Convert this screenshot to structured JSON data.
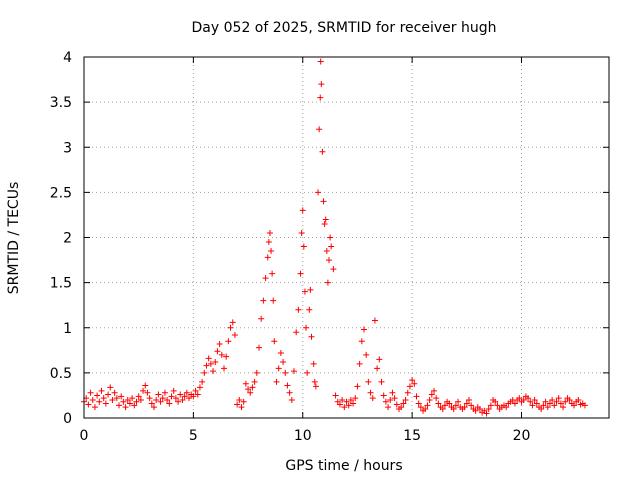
{
  "chart_data": {
    "type": "scatter",
    "title": "Day 052 of 2025, SRMTID for receiver hugh",
    "xlabel": "GPS time / hours",
    "ylabel": "SRMTID / TECUs",
    "xlim": [
      0,
      24
    ],
    "ylim": [
      0,
      4
    ],
    "xticks": [
      0,
      5,
      10,
      15,
      20
    ],
    "xtick_labels": [
      "0",
      "5",
      "10",
      "15",
      "20"
    ],
    "yticks": [
      0,
      0.5,
      1,
      1.5,
      2,
      2.5,
      3,
      3.5,
      4
    ],
    "ytick_labels": [
      "0",
      "0.5",
      "1",
      "1.5",
      "2",
      "2.5",
      "3",
      "3.5",
      "4"
    ],
    "grid": true,
    "marker": "plus",
    "color": "#ff0000",
    "series": [
      {
        "name": "SRMTID",
        "points": [
          [
            0.0,
            0.18
          ],
          [
            0.1,
            0.22
          ],
          [
            0.2,
            0.15
          ],
          [
            0.3,
            0.28
          ],
          [
            0.4,
            0.2
          ],
          [
            0.5,
            0.12
          ],
          [
            0.6,
            0.25
          ],
          [
            0.7,
            0.18
          ],
          [
            0.8,
            0.3
          ],
          [
            0.9,
            0.22
          ],
          [
            1.0,
            0.16
          ],
          [
            1.1,
            0.26
          ],
          [
            1.2,
            0.34
          ],
          [
            1.3,
            0.2
          ],
          [
            1.4,
            0.28
          ],
          [
            1.5,
            0.22
          ],
          [
            1.6,
            0.14
          ],
          [
            1.7,
            0.24
          ],
          [
            1.8,
            0.18
          ],
          [
            1.9,
            0.12
          ],
          [
            2.0,
            0.2
          ],
          [
            2.1,
            0.16
          ],
          [
            2.2,
            0.22
          ],
          [
            2.3,
            0.14
          ],
          [
            2.4,
            0.18
          ],
          [
            2.5,
            0.24
          ],
          [
            2.6,
            0.2
          ],
          [
            2.7,
            0.3
          ],
          [
            2.8,
            0.36
          ],
          [
            2.9,
            0.28
          ],
          [
            3.0,
            0.22
          ],
          [
            3.1,
            0.16
          ],
          [
            3.2,
            0.12
          ],
          [
            3.3,
            0.2
          ],
          [
            3.4,
            0.26
          ],
          [
            3.5,
            0.18
          ],
          [
            3.6,
            0.22
          ],
          [
            3.7,
            0.28
          ],
          [
            3.8,
            0.2
          ],
          [
            3.9,
            0.16
          ],
          [
            4.0,
            0.24
          ],
          [
            4.1,
            0.3
          ],
          [
            4.2,
            0.22
          ],
          [
            4.3,
            0.18
          ],
          [
            4.4,
            0.26
          ],
          [
            4.5,
            0.2
          ],
          [
            4.6,
            0.24
          ],
          [
            4.7,
            0.28
          ],
          [
            4.8,
            0.22
          ],
          [
            4.9,
            0.26
          ],
          [
            5.0,
            0.24
          ],
          [
            5.1,
            0.3
          ],
          [
            5.2,
            0.26
          ],
          [
            5.3,
            0.34
          ],
          [
            5.4,
            0.4
          ],
          [
            5.5,
            0.5
          ],
          [
            5.6,
            0.58
          ],
          [
            5.7,
            0.66
          ],
          [
            5.8,
            0.6
          ],
          [
            5.9,
            0.52
          ],
          [
            6.0,
            0.62
          ],
          [
            6.1,
            0.74
          ],
          [
            6.2,
            0.82
          ],
          [
            6.3,
            0.7
          ],
          [
            6.4,
            0.55
          ],
          [
            6.5,
            0.68
          ],
          [
            6.6,
            0.85
          ],
          [
            6.7,
            1.0
          ],
          [
            6.8,
            1.06
          ],
          [
            6.9,
            0.92
          ],
          [
            7.0,
            0.15
          ],
          [
            7.1,
            0.2
          ],
          [
            7.2,
            0.12
          ],
          [
            7.3,
            0.18
          ],
          [
            7.4,
            0.38
          ],
          [
            7.5,
            0.32
          ],
          [
            7.6,
            0.28
          ],
          [
            7.7,
            0.34
          ],
          [
            7.8,
            0.4
          ],
          [
            7.9,
            0.5
          ],
          [
            8.0,
            0.78
          ],
          [
            8.1,
            1.1
          ],
          [
            8.2,
            1.3
          ],
          [
            8.3,
            1.55
          ],
          [
            8.4,
            1.78
          ],
          [
            8.45,
            1.95
          ],
          [
            8.5,
            2.05
          ],
          [
            8.55,
            1.85
          ],
          [
            8.6,
            1.6
          ],
          [
            8.65,
            1.3
          ],
          [
            8.7,
            0.85
          ],
          [
            8.8,
            0.4
          ],
          [
            8.9,
            0.55
          ],
          [
            9.0,
            0.72
          ],
          [
            9.1,
            0.62
          ],
          [
            9.2,
            0.5
          ],
          [
            9.3,
            0.36
          ],
          [
            9.4,
            0.28
          ],
          [
            9.5,
            0.2
          ],
          [
            9.6,
            0.52
          ],
          [
            9.7,
            0.95
          ],
          [
            9.8,
            1.2
          ],
          [
            9.9,
            1.6
          ],
          [
            9.95,
            2.05
          ],
          [
            10.0,
            2.3
          ],
          [
            10.05,
            1.9
          ],
          [
            10.1,
            1.4
          ],
          [
            10.15,
            1.0
          ],
          [
            10.2,
            0.5
          ],
          [
            10.3,
            1.2
          ],
          [
            10.35,
            1.42
          ],
          [
            10.4,
            0.9
          ],
          [
            10.5,
            0.6
          ],
          [
            10.55,
            0.4
          ],
          [
            10.6,
            0.35
          ],
          [
            10.7,
            2.5
          ],
          [
            10.75,
            3.2
          ],
          [
            10.8,
            3.55
          ],
          [
            10.82,
            3.95
          ],
          [
            10.85,
            3.7
          ],
          [
            10.9,
            2.95
          ],
          [
            10.95,
            2.4
          ],
          [
            11.0,
            2.15
          ],
          [
            11.05,
            2.2
          ],
          [
            11.1,
            1.85
          ],
          [
            11.15,
            1.5
          ],
          [
            11.2,
            1.75
          ],
          [
            11.25,
            2.0
          ],
          [
            11.3,
            1.9
          ],
          [
            11.4,
            1.65
          ],
          [
            11.5,
            0.25
          ],
          [
            11.6,
            0.18
          ],
          [
            11.7,
            0.15
          ],
          [
            11.8,
            0.2
          ],
          [
            11.9,
            0.12
          ],
          [
            12.0,
            0.18
          ],
          [
            12.1,
            0.14
          ],
          [
            12.2,
            0.2
          ],
          [
            12.3,
            0.16
          ],
          [
            12.4,
            0.22
          ],
          [
            12.5,
            0.35
          ],
          [
            12.6,
            0.6
          ],
          [
            12.7,
            0.85
          ],
          [
            12.8,
            0.98
          ],
          [
            12.9,
            0.7
          ],
          [
            13.0,
            0.4
          ],
          [
            13.1,
            0.28
          ],
          [
            13.2,
            0.22
          ],
          [
            13.3,
            1.08
          ],
          [
            13.4,
            0.55
          ],
          [
            13.5,
            0.65
          ],
          [
            13.6,
            0.4
          ],
          [
            13.7,
            0.25
          ],
          [
            13.8,
            0.18
          ],
          [
            13.9,
            0.12
          ],
          [
            14.0,
            0.2
          ],
          [
            14.1,
            0.28
          ],
          [
            14.2,
            0.22
          ],
          [
            14.3,
            0.15
          ],
          [
            14.4,
            0.1
          ],
          [
            14.5,
            0.12
          ],
          [
            14.6,
            0.16
          ],
          [
            14.7,
            0.2
          ],
          [
            14.8,
            0.28
          ],
          [
            14.9,
            0.35
          ],
          [
            15.0,
            0.42
          ],
          [
            15.1,
            0.38
          ],
          [
            15.2,
            0.24
          ],
          [
            15.3,
            0.16
          ],
          [
            15.4,
            0.12
          ],
          [
            15.5,
            0.08
          ],
          [
            15.6,
            0.1
          ],
          [
            15.7,
            0.14
          ],
          [
            15.8,
            0.2
          ],
          [
            15.9,
            0.26
          ],
          [
            16.0,
            0.3
          ],
          [
            16.1,
            0.22
          ],
          [
            16.2,
            0.16
          ],
          [
            16.3,
            0.12
          ],
          [
            16.4,
            0.1
          ],
          [
            16.5,
            0.14
          ],
          [
            16.6,
            0.18
          ],
          [
            16.7,
            0.16
          ],
          [
            16.8,
            0.12
          ],
          [
            16.9,
            0.1
          ],
          [
            17.0,
            0.14
          ],
          [
            17.1,
            0.18
          ],
          [
            17.2,
            0.12
          ],
          [
            17.3,
            0.1
          ],
          [
            17.4,
            0.12
          ],
          [
            17.5,
            0.16
          ],
          [
            17.6,
            0.2
          ],
          [
            17.7,
            0.14
          ],
          [
            17.8,
            0.1
          ],
          [
            17.9,
            0.08
          ],
          [
            18.0,
            0.12
          ],
          [
            18.1,
            0.1
          ],
          [
            18.2,
            0.06
          ],
          [
            18.3,
            0.08
          ],
          [
            18.4,
            0.05
          ],
          [
            18.5,
            0.1
          ],
          [
            18.6,
            0.14
          ],
          [
            18.7,
            0.2
          ],
          [
            18.8,
            0.18
          ],
          [
            18.9,
            0.14
          ],
          [
            19.0,
            0.1
          ],
          [
            19.1,
            0.12
          ],
          [
            19.2,
            0.14
          ],
          [
            19.3,
            0.12
          ],
          [
            19.4,
            0.16
          ],
          [
            19.5,
            0.18
          ],
          [
            19.6,
            0.2
          ],
          [
            19.7,
            0.16
          ],
          [
            19.8,
            0.2
          ],
          [
            19.9,
            0.22
          ],
          [
            20.0,
            0.18
          ],
          [
            20.1,
            0.2
          ],
          [
            20.2,
            0.24
          ],
          [
            20.3,
            0.22
          ],
          [
            20.4,
            0.18
          ],
          [
            20.5,
            0.14
          ],
          [
            20.6,
            0.2
          ],
          [
            20.7,
            0.16
          ],
          [
            20.8,
            0.12
          ],
          [
            20.9,
            0.1
          ],
          [
            21.0,
            0.14
          ],
          [
            21.1,
            0.18
          ],
          [
            21.2,
            0.12
          ],
          [
            21.3,
            0.16
          ],
          [
            21.4,
            0.2
          ],
          [
            21.5,
            0.14
          ],
          [
            21.6,
            0.18
          ],
          [
            21.7,
            0.22
          ],
          [
            21.8,
            0.16
          ],
          [
            21.9,
            0.12
          ],
          [
            22.0,
            0.18
          ],
          [
            22.1,
            0.22
          ],
          [
            22.2,
            0.2
          ],
          [
            22.3,
            0.16
          ],
          [
            22.4,
            0.14
          ],
          [
            22.5,
            0.18
          ],
          [
            22.6,
            0.2
          ],
          [
            22.7,
            0.15
          ],
          [
            22.8,
            0.16
          ],
          [
            22.9,
            0.14
          ]
        ]
      }
    ]
  }
}
